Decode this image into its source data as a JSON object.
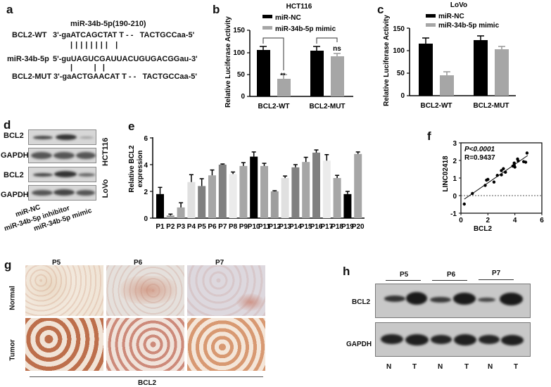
{
  "panels": {
    "a": {
      "label": "a",
      "title": "miR-34b-5p(190-210)",
      "rows": [
        {
          "name": "BCL2-WT",
          "seq": "3'-gaATCAGCTAT T - -   TACTGCCaa-5'"
        },
        {
          "name": "miR-34b-5p",
          "seq": "5'-guUAGUCGAUUACUGUGACGGau-3'"
        },
        {
          "name": "BCL2-MUT",
          "seq": "3'-gaACTGAACAT T - -   TACTGCCaa-5'"
        }
      ],
      "pairing_top": "| | | | | | | |   |",
      "pairing_bottom": "|          |   |"
    },
    "b": {
      "label": "b"
    },
    "c": {
      "label": "c"
    },
    "d": {
      "label": "d",
      "rows": [
        "BCL2",
        "GAPDH",
        "BCL2",
        "GAPDH"
      ],
      "cell_lines": [
        "HCT116",
        "LoVo"
      ],
      "lanes": [
        "miR-NC",
        "miR-34b-5p inhibitor",
        "miR-34b-5p mimic"
      ]
    },
    "e": {
      "label": "e"
    },
    "f": {
      "label": "f",
      "p_text": "P<0.0001",
      "r_text": "R=0.9437"
    },
    "g": {
      "label": "g",
      "columns": [
        "P5",
        "P6",
        "P7"
      ],
      "rows": [
        "Normal",
        "Tumor"
      ],
      "footer": "BCL2"
    },
    "h": {
      "label": "h",
      "groups": [
        "P5",
        "P6",
        "P7"
      ],
      "rows": [
        "BCL2",
        "GAPDH"
      ],
      "lanes": [
        "N",
        "T",
        "N",
        "T",
        "N",
        "T"
      ]
    }
  },
  "chart_data": [
    {
      "id": "b",
      "type": "bar",
      "title": "HCT116",
      "categories": [
        "BCL2-WT",
        "BCL2-MUT"
      ],
      "series": [
        {
          "name": "miR-NC",
          "color": "#000000",
          "values": [
            105,
            103
          ],
          "errors": [
            8,
            9
          ]
        },
        {
          "name": "miR-34b-5p mimic",
          "color": "#a6a6a6",
          "values": [
            40,
            90
          ],
          "errors": [
            9,
            6
          ]
        }
      ],
      "annotations": [
        "**",
        "ns"
      ],
      "xlabel": "",
      "ylabel": "Relative Luciferase Activity",
      "yticks": [
        0,
        50,
        100,
        150
      ],
      "ylim": [
        0,
        150
      ],
      "legend_position": "top"
    },
    {
      "id": "c",
      "type": "bar",
      "title": "LoVo",
      "categories": [
        "BCL2-WT",
        "BCL2-MUT"
      ],
      "series": [
        {
          "name": "miR-NC",
          "color": "#000000",
          "values": [
            115,
            122
          ],
          "errors": [
            12,
            9
          ]
        },
        {
          "name": "miR-34b-5p mimic",
          "color": "#a6a6a6",
          "values": [
            45,
            103
          ],
          "errors": [
            8,
            6
          ]
        }
      ],
      "xlabel": "",
      "ylabel": "Relative Luciferase Activity",
      "yticks": [
        0,
        50,
        100,
        150
      ],
      "ylim": [
        0,
        150
      ],
      "legend_position": "top"
    },
    {
      "id": "e",
      "type": "bar",
      "title": "",
      "categories": [
        "P1",
        "P2",
        "P3",
        "P4",
        "P5",
        "P6",
        "P7",
        "P8",
        "P9",
        "P10",
        "P11",
        "P12",
        "P13",
        "P14",
        "P15",
        "P16",
        "P17",
        "P18",
        "P19",
        "P20"
      ],
      "values": [
        1.8,
        0.2,
        0.8,
        2.7,
        2.4,
        3.2,
        4.0,
        3.3,
        3.9,
        4.6,
        3.9,
        2.0,
        3.0,
        3.8,
        4.2,
        4.9,
        4.3,
        3.0,
        1.8,
        4.8
      ],
      "errors": [
        0.5,
        0.1,
        0.35,
        0.55,
        0.55,
        0.4,
        0.05,
        0.15,
        0.25,
        0.35,
        0.2,
        0.05,
        0.15,
        0.2,
        0.35,
        0.2,
        0.45,
        0.2,
        0.2,
        0.15
      ],
      "colors": [
        "#000000",
        "#9e9e9e",
        "#a6a6a6",
        "#e0e0e0",
        "#808080",
        "#a6a6a6",
        "#808080",
        "#ebebeb",
        "#a6a6a6",
        "#000000",
        "#a6a6a6",
        "#9e9e9e",
        "#e0e0e0",
        "#808080",
        "#a6a6a6",
        "#808080",
        "#ebebeb",
        "#a6a6a6",
        "#000000",
        "#a6a6a6"
      ],
      "xlabel": "",
      "ylabel": "Relative BCL2 expression",
      "yticks": [
        0,
        2,
        4,
        6
      ],
      "ylim": [
        0,
        6
      ]
    },
    {
      "id": "f",
      "type": "scatter",
      "title": "",
      "xlabel": "BCL2",
      "ylabel": "LINC02418",
      "xticks": [
        0,
        2,
        4,
        6
      ],
      "yticks": [
        -1,
        0,
        1,
        2,
        3
      ],
      "xlim": [
        0,
        6
      ],
      "ylim": [
        -1,
        3
      ],
      "points": [
        [
          0.25,
          -0.48
        ],
        [
          0.85,
          0.12
        ],
        [
          1.8,
          0.58
        ],
        [
          1.9,
          0.88
        ],
        [
          2.0,
          0.92
        ],
        [
          2.45,
          0.77
        ],
        [
          2.7,
          1.15
        ],
        [
          3.0,
          1.18
        ],
        [
          3.0,
          1.42
        ],
        [
          3.15,
          1.53
        ],
        [
          3.3,
          1.33
        ],
        [
          3.85,
          1.68
        ],
        [
          3.95,
          1.73
        ],
        [
          3.95,
          1.85
        ],
        [
          4.0,
          1.62
        ],
        [
          4.2,
          2.08
        ],
        [
          4.25,
          1.97
        ],
        [
          4.65,
          1.93
        ],
        [
          4.8,
          1.9
        ],
        [
          4.9,
          2.42
        ]
      ],
      "fit_line": {
        "x": [
          0.25,
          4.95
        ],
        "y": [
          -0.2,
          2.28
        ]
      },
      "reference_line_y": 0,
      "annotations": [
        "P<0.0001",
        "R=0.9437"
      ]
    }
  ]
}
